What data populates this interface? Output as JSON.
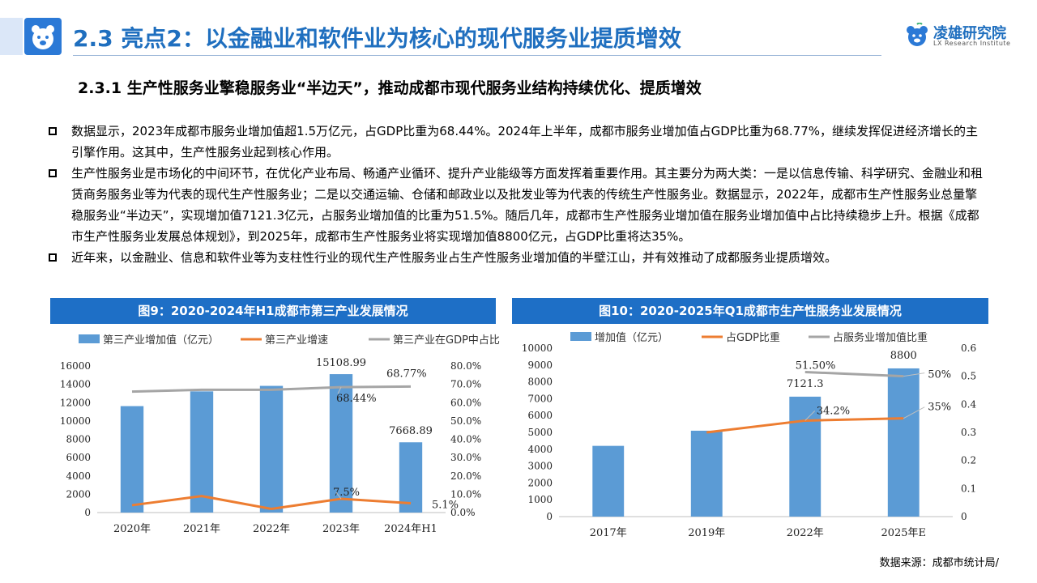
{
  "header": {
    "title": "2.3 亮点2：以金融业和软件业为核心的现代服务业提质增效",
    "brand_name": "凌雄研究院",
    "brand_sub": "LX Research Institute",
    "accent": "#1f6fbf"
  },
  "subtitle": "2.3.1 生产性服务业擎稳服务业“半边天”，推动成都市现代服务业结构持续优化、提质增效",
  "bullets": [
    "数据显示，2023年成都市服务业增加值超1.5万亿元，占GDP比重为68.44%。2024年上半年，成都市服务业增加值占GDP比重为68.77%，继续发挥促进经济增长的主引擎作用。这其中，生产性服务业起到核心作用。",
    "生产性服务业是市场化的中间环节，在优化产业布局、畅通产业循环、提升产业能级等方面发挥着重要作用。其主要分为两大类：一是以信息传输、科学研究、金融业和租赁商务服务业等为代表的现代生产性服务业；二是以交通运输、仓储和邮政业以及批发业等为代表的传统生产性服务业。数据显示，2022年，成都市生产性服务业总量擎稳服务业“半边天”，实现增加值7121.3亿元，占服务业增加值的比重为51.5%。随后几年，成都市生产性服务业增加值在服务业增加值中占比持续稳步上升。根据《成都市生产性服务业发展总体规划》，到2025年，成都市生产性服务业将实现增加值8800亿元，占GDP比重将达35%。",
    "近年来，以金融业、信息和软件业等为支柱性行业的现代生产性服务业占生产性服务业增加值的半壁江山，并有效推动了成都服务业提质增效。"
  ],
  "source": "数据来源：成都市统计局/",
  "chart_data": [
    {
      "type": "bar",
      "title": "图9：2020-2024年H1成都市第三产业发展情况",
      "categories": [
        "2020年",
        "2021年",
        "2022年",
        "2023年",
        "2024年H1"
      ],
      "series": [
        {
          "name": "第三产业增加值（亿元）",
          "type": "bar",
          "axis": "left",
          "values": [
            11620,
            13230,
            13830,
            15108.99,
            7668.89
          ],
          "color": "#5b9bd5"
        },
        {
          "name": "第三产业增速",
          "type": "line",
          "axis": "right",
          "values": [
            0.04,
            0.09,
            0.02,
            0.075,
            0.051
          ],
          "color": "#ed7d31"
        },
        {
          "name": "第三产业在GDP中占比",
          "type": "line",
          "axis": "right",
          "values": [
            0.66,
            0.67,
            0.67,
            0.6844,
            0.6877
          ],
          "color": "#a5a5a5"
        }
      ],
      "ylim": [
        0,
        16000
      ],
      "yticks": [
        "0",
        "2000",
        "4000",
        "6000",
        "8000",
        "10000",
        "12000",
        "14000",
        "16000"
      ],
      "y2lim": [
        0,
        0.8
      ],
      "y2ticks": [
        "0.0%",
        "10.0%",
        "20.0%",
        "30.0%",
        "40.0%",
        "50.0%",
        "60.0%",
        "70.0%",
        "80.0%"
      ],
      "data_labels": [
        "15108.99",
        "7668.89",
        "68.77%",
        "68.44%",
        "7.5%",
        "5.1%"
      ],
      "legend": "top"
    },
    {
      "type": "bar",
      "title": "图10：2020-2025年Q1成都市生产性服务业发展情况",
      "categories": [
        "2017年",
        "2019年",
        "2022年",
        "2025年E"
      ],
      "series": [
        {
          "name": "增加值（亿元）",
          "type": "bar",
          "axis": "left",
          "values": [
            4200,
            5100,
            7121.3,
            8800
          ],
          "color": "#5b9bd5"
        },
        {
          "name": "占GDP比重",
          "type": "line",
          "axis": "right",
          "values": [
            null,
            0.3,
            0.342,
            0.35
          ],
          "color": "#ed7d31"
        },
        {
          "name": "占服务业增加值比重",
          "type": "line",
          "axis": "right",
          "values": [
            null,
            null,
            0.515,
            0.5
          ],
          "color": "#a5a5a5"
        }
      ],
      "ylim": [
        0,
        10000
      ],
      "yticks": [
        "0",
        "1000",
        "2000",
        "3000",
        "4000",
        "5000",
        "6000",
        "7000",
        "8000",
        "9000",
        "10000"
      ],
      "y2lim": [
        0,
        0.6
      ],
      "y2ticks": [
        "0",
        "0.1",
        "0.2",
        "0.3",
        "0.4",
        "0.5",
        "0.6"
      ],
      "data_labels": [
        "7121.3",
        "8800",
        "51.50%",
        "50%",
        "34.2%",
        "35%"
      ],
      "legend": "top"
    }
  ]
}
